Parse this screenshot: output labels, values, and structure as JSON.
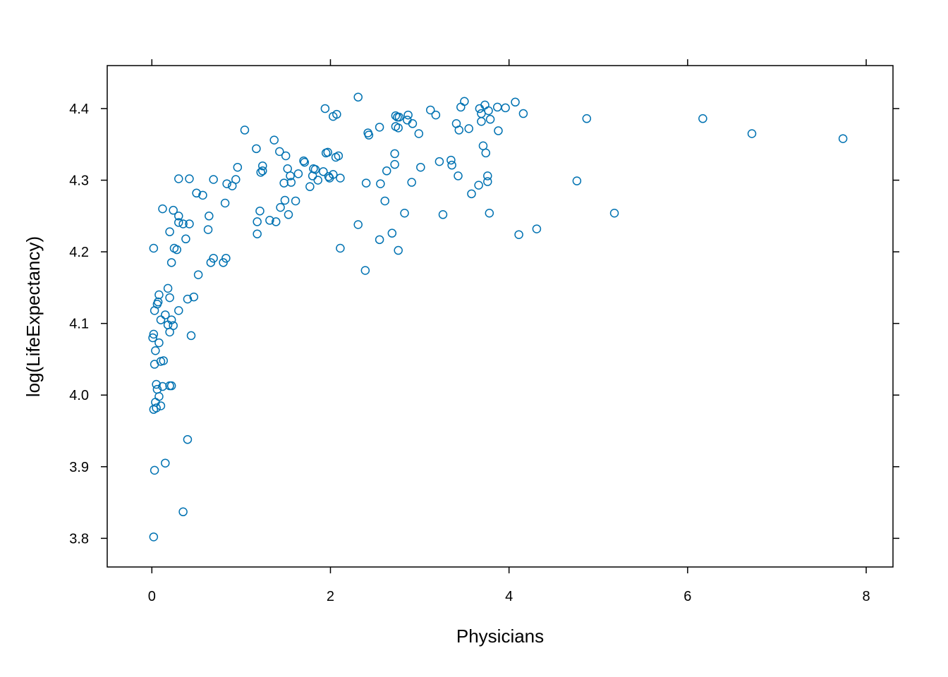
{
  "chart_data": {
    "type": "scatter",
    "title": "",
    "xlabel": "Physicians",
    "ylabel": "log(LifeExpectancy)",
    "xlim": [
      -0.5,
      8.3
    ],
    "ylim": [
      3.76,
      4.46
    ],
    "x_ticks": [
      0,
      2,
      4,
      6,
      8
    ],
    "x_tick_labels": [
      "0",
      "2",
      "4",
      "6",
      "8"
    ],
    "y_ticks": [
      3.8,
      3.9,
      4.0,
      4.1,
      4.2,
      4.3,
      4.4
    ],
    "y_tick_labels": [
      "3.8",
      "3.9",
      "4.0",
      "4.1",
      "4.2",
      "4.3",
      "4.4"
    ],
    "grid": false,
    "marker_color": "#0072B2",
    "series": [
      {
        "points": [
          [
            0.02,
            3.802
          ],
          [
            0.03,
            3.895
          ],
          [
            0.15,
            3.905
          ],
          [
            0.35,
            3.837
          ],
          [
            0.4,
            3.938
          ],
          [
            0.02,
            3.98
          ],
          [
            0.05,
            3.982
          ],
          [
            0.1,
            3.985
          ],
          [
            0.04,
            3.99
          ],
          [
            0.08,
            3.998
          ],
          [
            0.06,
            4.008
          ],
          [
            0.05,
            4.015
          ],
          [
            0.12,
            4.012
          ],
          [
            0.2,
            4.013
          ],
          [
            0.22,
            4.013
          ],
          [
            0.03,
            4.043
          ],
          [
            0.1,
            4.047
          ],
          [
            0.13,
            4.048
          ],
          [
            0.04,
            4.062
          ],
          [
            0.08,
            4.073
          ],
          [
            0.01,
            4.08
          ],
          [
            0.02,
            4.085
          ],
          [
            0.2,
            4.088
          ],
          [
            0.44,
            4.083
          ],
          [
            0.18,
            4.098
          ],
          [
            0.24,
            4.097
          ],
          [
            0.1,
            4.105
          ],
          [
            0.22,
            4.105
          ],
          [
            0.15,
            4.112
          ],
          [
            0.03,
            4.118
          ],
          [
            0.3,
            4.118
          ],
          [
            0.06,
            4.127
          ],
          [
            0.07,
            4.13
          ],
          [
            0.08,
            4.14
          ],
          [
            0.2,
            4.136
          ],
          [
            0.4,
            4.134
          ],
          [
            0.47,
            4.137
          ],
          [
            0.18,
            4.149
          ],
          [
            0.02,
            4.205
          ],
          [
            0.22,
            4.185
          ],
          [
            0.25,
            4.205
          ],
          [
            0.28,
            4.203
          ],
          [
            0.38,
            4.218
          ],
          [
            0.2,
            4.228
          ],
          [
            0.3,
            4.241
          ],
          [
            0.35,
            4.239
          ],
          [
            0.42,
            4.239
          ],
          [
            0.3,
            4.25
          ],
          [
            0.12,
            4.26
          ],
          [
            0.24,
            4.258
          ],
          [
            0.3,
            4.302
          ],
          [
            0.42,
            4.302
          ],
          [
            0.5,
            4.282
          ],
          [
            0.57,
            4.279
          ],
          [
            0.52,
            4.168
          ],
          [
            0.63,
            4.231
          ],
          [
            0.64,
            4.25
          ],
          [
            0.66,
            4.185
          ],
          [
            0.69,
            4.191
          ],
          [
            0.69,
            4.301
          ],
          [
            0.8,
            4.185
          ],
          [
            0.83,
            4.191
          ],
          [
            0.82,
            4.268
          ],
          [
            0.84,
            4.295
          ],
          [
            0.9,
            4.292
          ],
          [
            0.94,
            4.301
          ],
          [
            0.96,
            4.318
          ],
          [
            1.04,
            4.37
          ],
          [
            1.17,
            4.344
          ],
          [
            1.18,
            4.242
          ],
          [
            1.18,
            4.225
          ],
          [
            1.21,
            4.257
          ],
          [
            1.22,
            4.311
          ],
          [
            1.24,
            4.32
          ],
          [
            1.24,
            4.313
          ],
          [
            1.32,
            4.244
          ],
          [
            1.37,
            4.356
          ],
          [
            1.39,
            4.242
          ],
          [
            1.43,
            4.34
          ],
          [
            1.44,
            4.262
          ],
          [
            1.48,
            4.296
          ],
          [
            1.49,
            4.272
          ],
          [
            1.5,
            4.334
          ],
          [
            1.52,
            4.316
          ],
          [
            1.53,
            4.252
          ],
          [
            1.55,
            4.306
          ],
          [
            1.56,
            4.297
          ],
          [
            1.61,
            4.271
          ],
          [
            1.64,
            4.309
          ],
          [
            1.7,
            4.327
          ],
          [
            1.71,
            4.325
          ],
          [
            1.77,
            4.291
          ],
          [
            1.8,
            4.306
          ],
          [
            1.81,
            4.316
          ],
          [
            1.83,
            4.315
          ],
          [
            1.86,
            4.3
          ],
          [
            1.92,
            4.312
          ],
          [
            1.94,
            4.4
          ],
          [
            1.95,
            4.338
          ],
          [
            1.97,
            4.339
          ],
          [
            1.98,
            4.305
          ],
          [
            1.99,
            4.303
          ],
          [
            2.03,
            4.308
          ],
          [
            2.03,
            4.389
          ],
          [
            2.06,
            4.332
          ],
          [
            2.07,
            4.392
          ],
          [
            2.09,
            4.334
          ],
          [
            2.11,
            4.303
          ],
          [
            2.11,
            4.205
          ],
          [
            2.31,
            4.416
          ],
          [
            2.31,
            4.238
          ],
          [
            2.39,
            4.174
          ],
          [
            2.4,
            4.296
          ],
          [
            2.42,
            4.366
          ],
          [
            2.43,
            4.363
          ],
          [
            2.55,
            4.374
          ],
          [
            2.55,
            4.217
          ],
          [
            2.56,
            4.295
          ],
          [
            2.61,
            4.271
          ],
          [
            2.63,
            4.313
          ],
          [
            2.69,
            4.226
          ],
          [
            2.72,
            4.337
          ],
          [
            2.72,
            4.322
          ],
          [
            2.73,
            4.375
          ],
          [
            2.73,
            4.39
          ],
          [
            2.75,
            4.388
          ],
          [
            2.76,
            4.373
          ],
          [
            2.76,
            4.202
          ],
          [
            2.77,
            4.388
          ],
          [
            2.83,
            4.254
          ],
          [
            2.86,
            4.384
          ],
          [
            2.87,
            4.391
          ],
          [
            2.91,
            4.297
          ],
          [
            2.92,
            4.379
          ],
          [
            2.99,
            4.365
          ],
          [
            3.01,
            4.318
          ],
          [
            3.12,
            4.398
          ],
          [
            3.18,
            4.391
          ],
          [
            3.22,
            4.326
          ],
          [
            3.26,
            4.252
          ],
          [
            3.35,
            4.328
          ],
          [
            3.36,
            4.321
          ],
          [
            3.41,
            4.379
          ],
          [
            3.43,
            4.306
          ],
          [
            3.44,
            4.37
          ],
          [
            3.46,
            4.402
          ],
          [
            3.5,
            4.41
          ],
          [
            3.55,
            4.372
          ],
          [
            3.58,
            4.281
          ],
          [
            3.66,
            4.293
          ],
          [
            3.67,
            4.4
          ],
          [
            3.69,
            4.393
          ],
          [
            3.69,
            4.382
          ],
          [
            3.71,
            4.348
          ],
          [
            3.73,
            4.405
          ],
          [
            3.74,
            4.338
          ],
          [
            3.76,
            4.306
          ],
          [
            3.76,
            4.298
          ],
          [
            3.77,
            4.397
          ],
          [
            3.78,
            4.254
          ],
          [
            3.79,
            4.385
          ],
          [
            3.87,
            4.402
          ],
          [
            3.88,
            4.369
          ],
          [
            3.96,
            4.401
          ],
          [
            4.07,
            4.409
          ],
          [
            4.11,
            4.224
          ],
          [
            4.16,
            4.393
          ],
          [
            4.31,
            4.232
          ],
          [
            4.76,
            4.299
          ],
          [
            4.87,
            4.386
          ],
          [
            5.18,
            4.254
          ],
          [
            6.17,
            4.386
          ],
          [
            6.72,
            4.365
          ],
          [
            7.74,
            4.358
          ]
        ]
      }
    ]
  }
}
